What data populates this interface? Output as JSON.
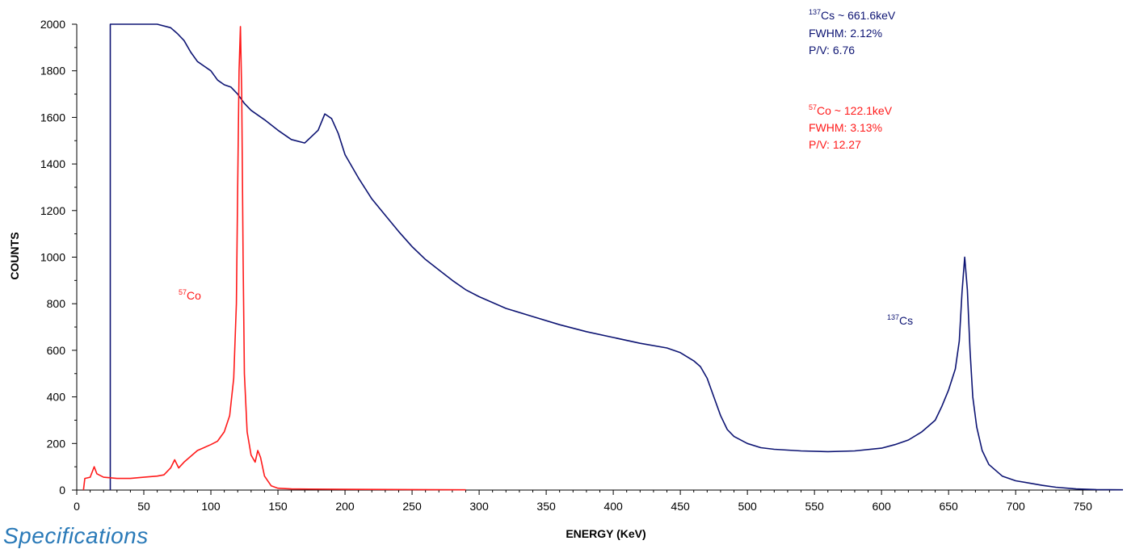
{
  "section_heading": "Specifications",
  "colors": {
    "cs137": "#0d1473",
    "co57": "#ff1a1a",
    "axis": "#000000"
  },
  "chart_data": {
    "type": "line",
    "xlabel": "ENERGY (KeV)",
    "ylabel": "COUNTS",
    "xlim": [
      0,
      780
    ],
    "ylim": [
      0,
      2000
    ],
    "x_ticks": [
      0,
      50,
      100,
      150,
      200,
      250,
      300,
      350,
      400,
      450,
      500,
      550,
      600,
      650,
      700,
      750
    ],
    "y_ticks": [
      0,
      200,
      400,
      600,
      800,
      1000,
      1200,
      1400,
      1600,
      1800,
      2000
    ],
    "grid": false,
    "series": [
      {
        "name": "137Cs",
        "color": "#0d1473",
        "points": [
          [
            25,
            0
          ],
          [
            25,
            2000
          ],
          [
            35,
            2000
          ],
          [
            50,
            2000
          ],
          [
            60,
            2000
          ],
          [
            70,
            1985
          ],
          [
            75,
            1960
          ],
          [
            80,
            1930
          ],
          [
            85,
            1880
          ],
          [
            90,
            1840
          ],
          [
            100,
            1800
          ],
          [
            105,
            1760
          ],
          [
            110,
            1740
          ],
          [
            115,
            1730
          ],
          [
            120,
            1700
          ],
          [
            125,
            1660
          ],
          [
            130,
            1630
          ],
          [
            140,
            1590
          ],
          [
            150,
            1545
          ],
          [
            160,
            1505
          ],
          [
            170,
            1490
          ],
          [
            180,
            1545
          ],
          [
            185,
            1615
          ],
          [
            190,
            1595
          ],
          [
            195,
            1530
          ],
          [
            200,
            1440
          ],
          [
            210,
            1340
          ],
          [
            220,
            1250
          ],
          [
            230,
            1180
          ],
          [
            240,
            1110
          ],
          [
            250,
            1045
          ],
          [
            260,
            990
          ],
          [
            270,
            945
          ],
          [
            280,
            900
          ],
          [
            290,
            860
          ],
          [
            300,
            830
          ],
          [
            320,
            780
          ],
          [
            340,
            745
          ],
          [
            360,
            710
          ],
          [
            380,
            680
          ],
          [
            400,
            655
          ],
          [
            420,
            630
          ],
          [
            440,
            610
          ],
          [
            450,
            590
          ],
          [
            460,
            555
          ],
          [
            465,
            530
          ],
          [
            470,
            480
          ],
          [
            475,
            400
          ],
          [
            480,
            320
          ],
          [
            485,
            260
          ],
          [
            490,
            230
          ],
          [
            500,
            200
          ],
          [
            510,
            182
          ],
          [
            520,
            175
          ],
          [
            540,
            168
          ],
          [
            560,
            165
          ],
          [
            580,
            168
          ],
          [
            600,
            180
          ],
          [
            610,
            195
          ],
          [
            620,
            215
          ],
          [
            630,
            250
          ],
          [
            640,
            300
          ],
          [
            645,
            360
          ],
          [
            650,
            430
          ],
          [
            655,
            520
          ],
          [
            658,
            640
          ],
          [
            660,
            850
          ],
          [
            662,
            1000
          ],
          [
            664,
            860
          ],
          [
            666,
            600
          ],
          [
            668,
            400
          ],
          [
            671,
            270
          ],
          [
            675,
            170
          ],
          [
            680,
            110
          ],
          [
            690,
            60
          ],
          [
            700,
            40
          ],
          [
            710,
            30
          ],
          [
            720,
            20
          ],
          [
            730,
            12
          ],
          [
            745,
            5
          ],
          [
            760,
            2
          ],
          [
            780,
            1
          ]
        ],
        "peak_label": "137Cs",
        "info": [
          "137Cs ~ 661.6keV",
          "FWHM: 2.12%",
          "P/V: 6.76"
        ]
      },
      {
        "name": "57Co",
        "color": "#ff1a1a",
        "points": [
          [
            5,
            0
          ],
          [
            6,
            50
          ],
          [
            10,
            55
          ],
          [
            13,
            100
          ],
          [
            15,
            70
          ],
          [
            20,
            55
          ],
          [
            30,
            50
          ],
          [
            40,
            50
          ],
          [
            50,
            55
          ],
          [
            60,
            60
          ],
          [
            65,
            65
          ],
          [
            70,
            95
          ],
          [
            73,
            130
          ],
          [
            76,
            95
          ],
          [
            80,
            120
          ],
          [
            90,
            170
          ],
          [
            100,
            195
          ],
          [
            105,
            210
          ],
          [
            110,
            250
          ],
          [
            114,
            320
          ],
          [
            117,
            480
          ],
          [
            119,
            800
          ],
          [
            120,
            1300
          ],
          [
            121,
            1800
          ],
          [
            122,
            1990
          ],
          [
            123,
            1700
          ],
          [
            124,
            1000
          ],
          [
            125,
            500
          ],
          [
            127,
            250
          ],
          [
            130,
            150
          ],
          [
            133,
            120
          ],
          [
            135,
            170
          ],
          [
            137,
            140
          ],
          [
            140,
            60
          ],
          [
            145,
            18
          ],
          [
            150,
            8
          ],
          [
            160,
            5
          ],
          [
            200,
            3
          ],
          [
            250,
            2
          ],
          [
            290,
            1
          ]
        ],
        "peak_label": "57Co",
        "info": [
          "57Co ~ 122.1keV",
          "FWHM: 3.13%",
          "P/V: 12.27"
        ]
      }
    ]
  }
}
